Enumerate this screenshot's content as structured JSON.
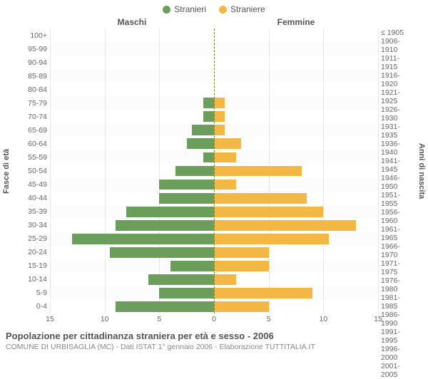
{
  "legend": {
    "male": {
      "label": "Stranieri",
      "color": "#6a9e5a"
    },
    "female": {
      "label": "Straniere",
      "color": "#f3b844"
    }
  },
  "titles": {
    "male": "Maschi",
    "female": "Femmine"
  },
  "y_left_label": "Fasce di età",
  "y_right_label": "Anni di nascita",
  "age_groups": [
    "100+",
    "95-99",
    "90-94",
    "85-89",
    "80-84",
    "75-79",
    "70-74",
    "65-69",
    "60-64",
    "55-59",
    "50-54",
    "45-49",
    "40-44",
    "35-39",
    "30-34",
    "25-29",
    "20-24",
    "15-19",
    "10-14",
    "5-9",
    "0-4"
  ],
  "birth_years": [
    "≤ 1905",
    "1906-1910",
    "1911-1915",
    "1916-1920",
    "1921-1925",
    "1926-1930",
    "1931-1935",
    "1936-1940",
    "1941-1945",
    "1946-1950",
    "1951-1955",
    "1956-1960",
    "1961-1965",
    "1966-1970",
    "1971-1975",
    "1976-1980",
    "1981-1985",
    "1986-1990",
    "1991-1995",
    "1996-2000",
    "2001-2005"
  ],
  "male_values": [
    0,
    0,
    0,
    0,
    0,
    1.0,
    1.0,
    2.0,
    2.5,
    1.0,
    3.5,
    5.0,
    5.0,
    8.0,
    9.0,
    13.0,
    9.5,
    4.0,
    6.0,
    5.0,
    9.0
  ],
  "female_values": [
    0,
    0,
    0,
    0,
    0,
    1.0,
    1.0,
    1.0,
    2.5,
    2.0,
    8.0,
    2.0,
    8.5,
    10.0,
    13.0,
    10.5,
    5.0,
    5.0,
    2.0,
    9.0,
    5.0
  ],
  "x_max": 15,
  "x_ticks_left": [
    15,
    10,
    5,
    0
  ],
  "x_ticks_right": [
    5,
    10,
    15
  ],
  "colors": {
    "male_bar": "#6a9e5a",
    "female_bar": "#f3b844",
    "grid": "#e8e8e8",
    "center_line": "#7a7a2a",
    "bg": "#ffffff"
  },
  "style": {
    "tick_fontsize": 10.5,
    "title_fontsize": 12,
    "legend_fontsize": 12,
    "footer_title_fontsize": 13,
    "footer_sub_fontsize": 10.5,
    "chart_type": "population-pyramid"
  },
  "footer": {
    "title": "Popolazione per cittadinanza straniera per età e sesso - 2006",
    "sub": "COMUNE DI URBISAGLIA (MC) - Dati ISTAT 1° gennaio 2006 - Elaborazione TUTTITALIA.IT"
  }
}
